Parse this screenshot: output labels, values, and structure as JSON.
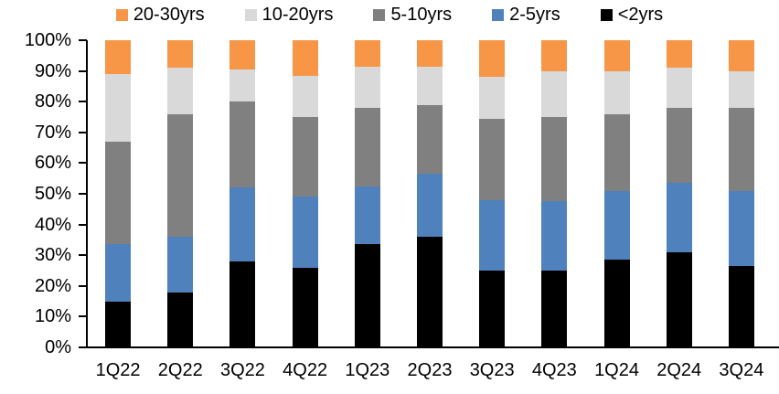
{
  "chart_data": {
    "type": "bar",
    "stacked": true,
    "percent": true,
    "title": "",
    "xlabel": "",
    "ylabel": "",
    "ylim": [
      0,
      100
    ],
    "grid": false,
    "legend_position": "top",
    "y_ticks": [
      "0%",
      "10%",
      "20%",
      "30%",
      "40%",
      "50%",
      "60%",
      "70%",
      "80%",
      "90%",
      "100%"
    ],
    "categories": [
      "1Q22",
      "2Q22",
      "3Q22",
      "4Q22",
      "1Q23",
      "2Q23",
      "3Q23",
      "4Q23",
      "1Q24",
      "2Q24",
      "3Q24"
    ],
    "series": [
      {
        "name": "<2yrs",
        "color": "#000000",
        "values": [
          15.0,
          18.0,
          28.0,
          26.0,
          33.5,
          36.0,
          25.0,
          25.0,
          28.5,
          31.0,
          26.5
        ]
      },
      {
        "name": "2-5yrs",
        "color": "#4F81BD",
        "values": [
          18.5,
          18.0,
          24.0,
          23.0,
          19.0,
          20.5,
          23.0,
          22.5,
          22.5,
          22.5,
          24.5
        ]
      },
      {
        "name": "5-10yrs",
        "color": "#808080",
        "values": [
          33.5,
          40.0,
          28.0,
          26.0,
          25.5,
          22.5,
          26.5,
          27.5,
          25.0,
          24.5,
          27.0
        ]
      },
      {
        "name": "10-20yrs",
        "color": "#D9D9D9",
        "values": [
          22.0,
          15.0,
          10.5,
          13.5,
          13.5,
          12.5,
          13.5,
          15.0,
          14.0,
          13.0,
          12.0
        ]
      },
      {
        "name": "20-30yrs",
        "color": "#F79646",
        "values": [
          11.0,
          9.0,
          9.5,
          11.5,
          8.5,
          8.5,
          12.0,
          10.0,
          10.0,
          9.0,
          10.0
        ]
      }
    ],
    "legend_order": [
      "20-30yrs",
      "10-20yrs",
      "5-10yrs",
      "2-5yrs",
      "<2yrs"
    ]
  }
}
